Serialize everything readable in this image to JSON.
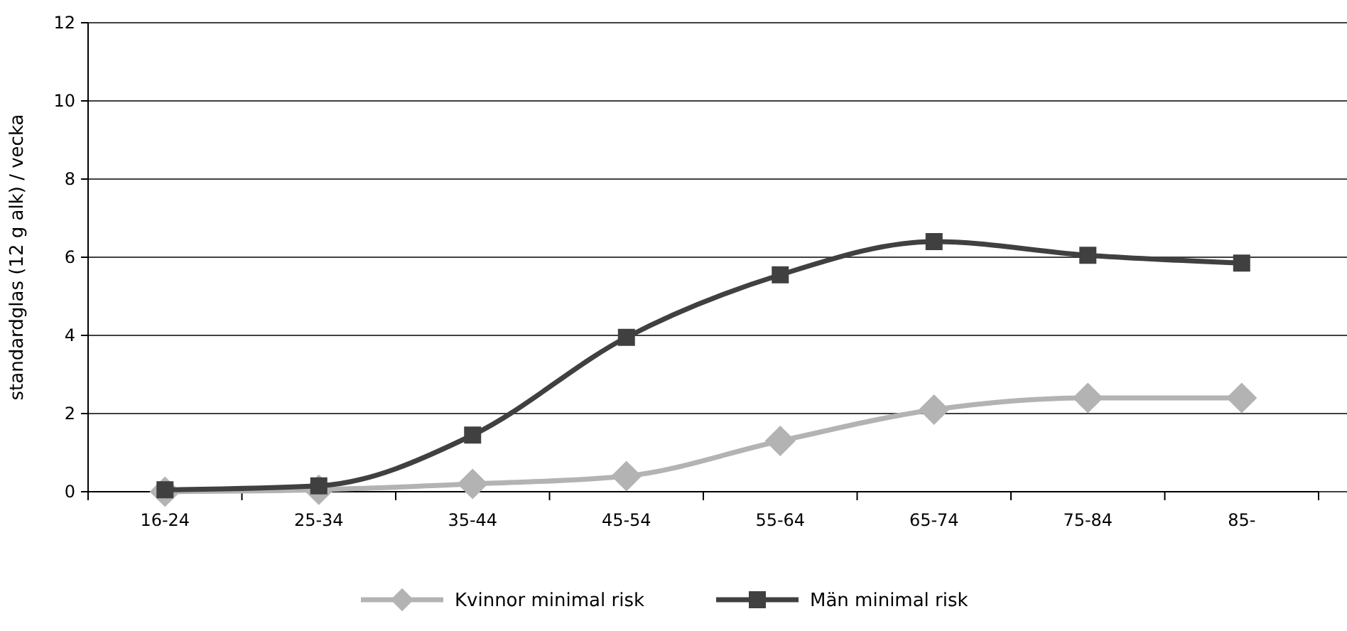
{
  "chart_data": {
    "type": "line",
    "ylabel": "standardglas (12 g alk) / vecka",
    "categories": [
      "16-24",
      "25-34",
      "35-44",
      "45-54",
      "55-64",
      "65-74",
      "75-84",
      "85-"
    ],
    "series": [
      {
        "name": "Kvinnor minimal risk",
        "color": "#b3b3b3",
        "marker": "diamond",
        "values": [
          0,
          0.05,
          0.2,
          0.4,
          1.3,
          2.1,
          2.4,
          2.4
        ]
      },
      {
        "name": "Män minimal risk",
        "color": "#404040",
        "marker": "square",
        "values": [
          0.05,
          0.15,
          1.45,
          3.95,
          5.55,
          6.4,
          6.05,
          5.85
        ]
      }
    ],
    "ylim": [
      0,
      12
    ],
    "yticks": [
      0,
      2,
      4,
      6,
      8,
      10,
      12
    ],
    "grid": "y",
    "legend": "bottom"
  }
}
